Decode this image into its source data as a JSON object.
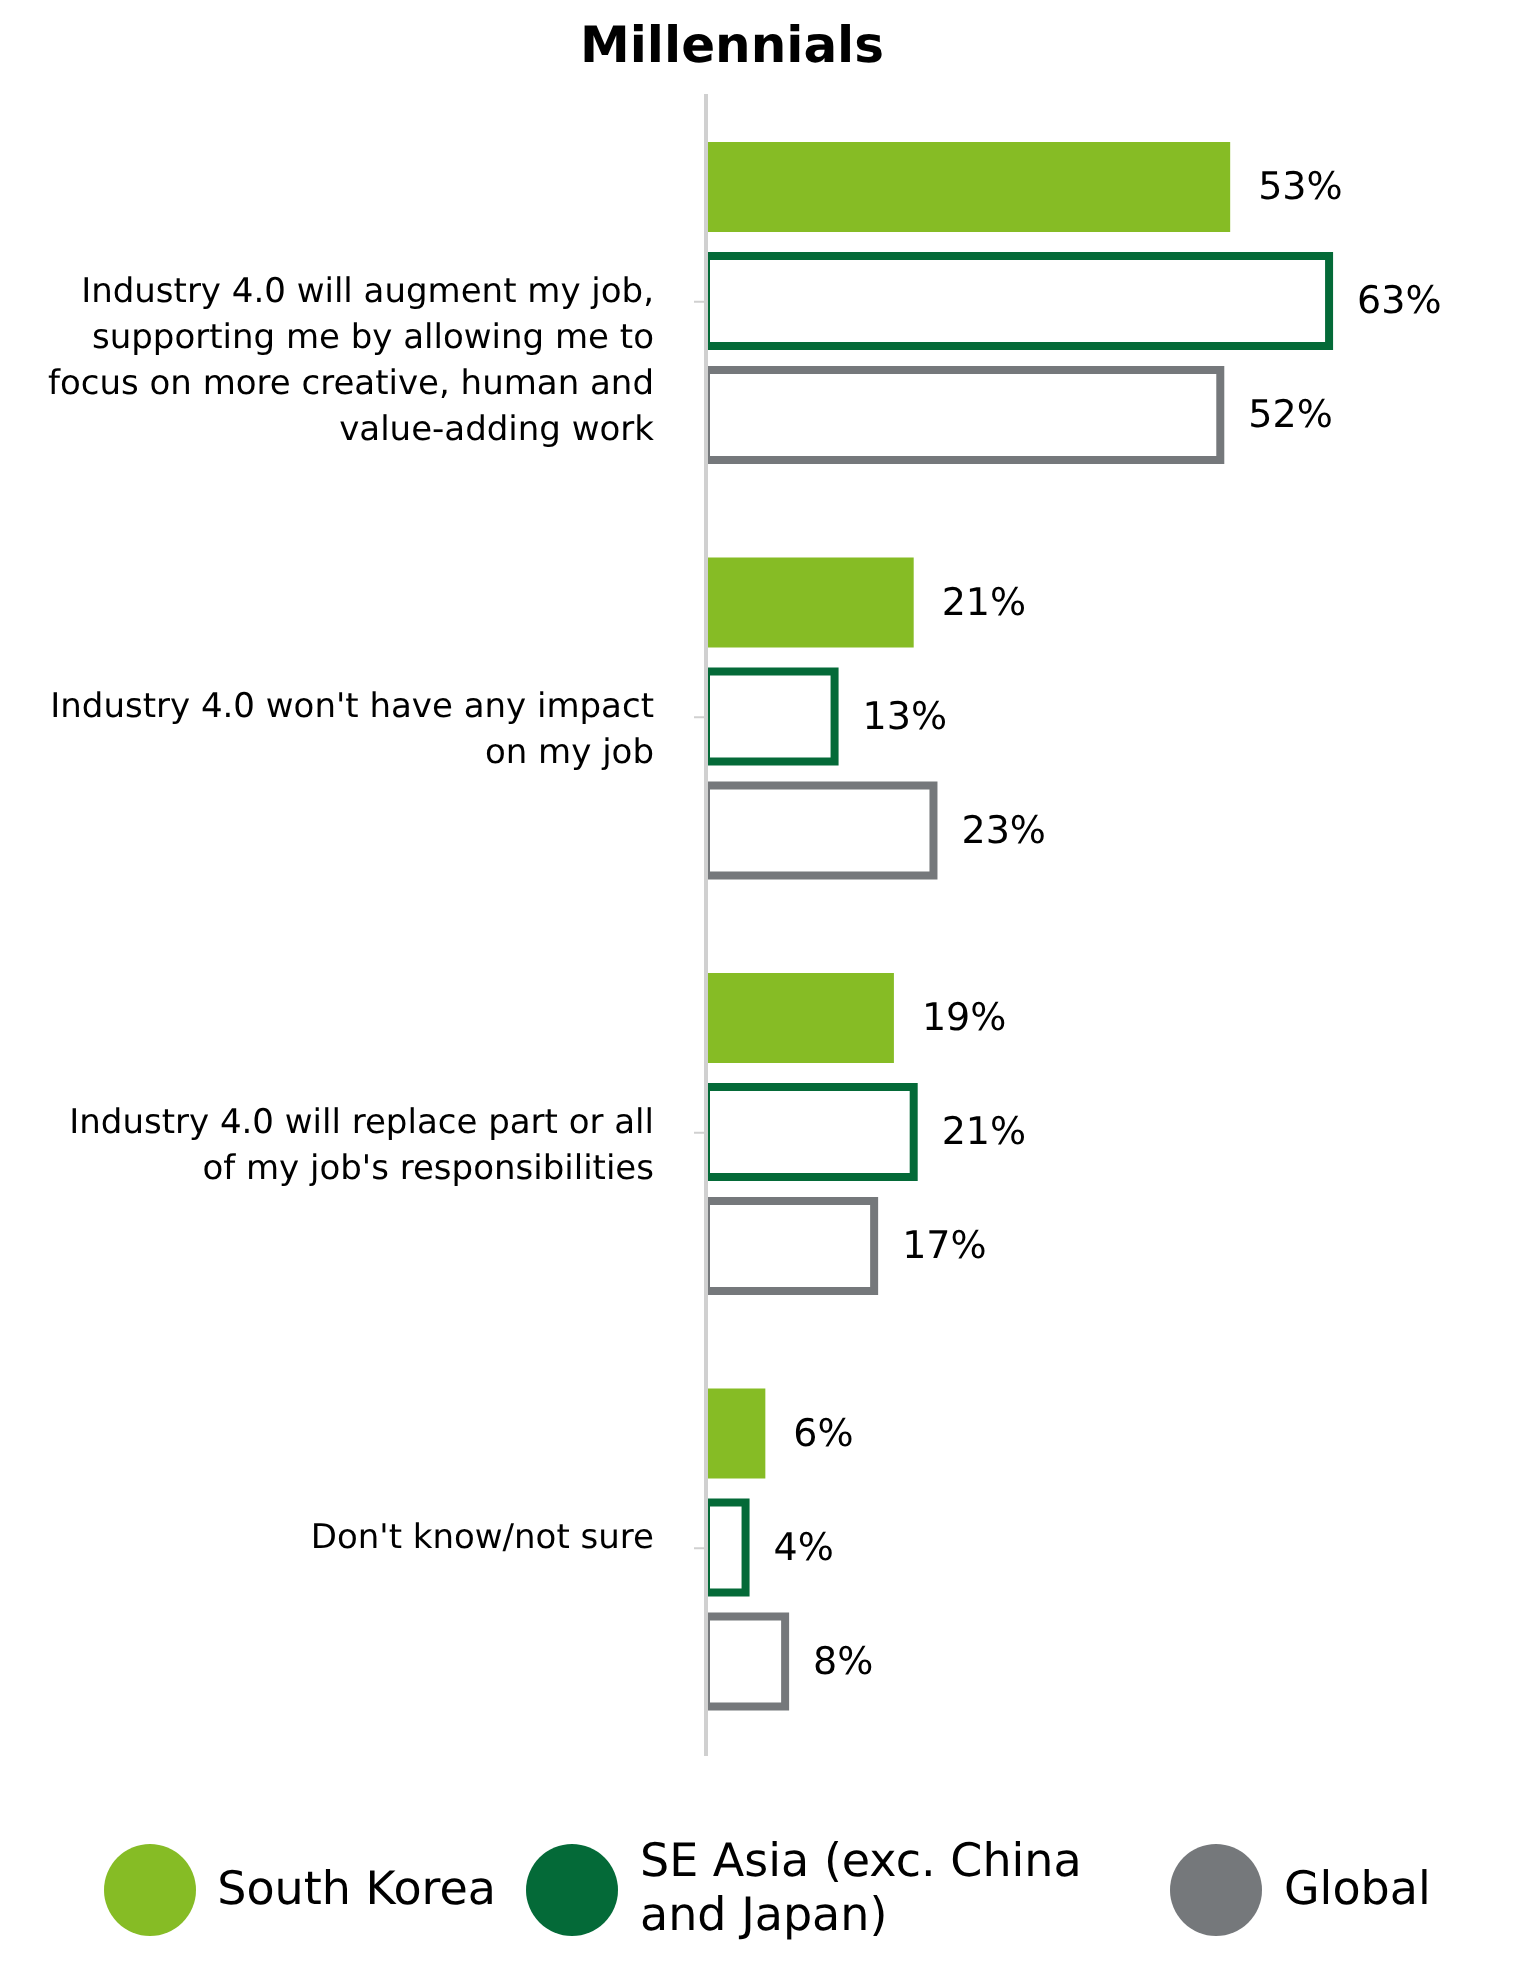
{
  "chart_data": {
    "type": "bar",
    "orientation": "horizontal",
    "title": "Millennials",
    "categories": [
      "Industry 4.0 will augment my job, supporting me by allowing me to focus on more creative, human and value-adding work",
      "Industry 4.0 won't have any impact on my job",
      "Industry 4.0 will replace part or all of my job's responsibilities",
      "Don't know/not sure"
    ],
    "series": [
      {
        "name": "South Korea",
        "color": "#86bc25",
        "values": [
          53,
          21,
          19,
          6
        ],
        "value_labels": [
          "53%",
          "21%",
          "19%",
          "6%"
        ]
      },
      {
        "name": "SE Asia (exc. China and Japan)",
        "color": "#046a38",
        "values": [
          63,
          13,
          21,
          4
        ],
        "value_labels": [
          "63%",
          "13%",
          "21%",
          "4%"
        ]
      },
      {
        "name": "Global",
        "color": "#75787b",
        "values": [
          52,
          23,
          17,
          8
        ],
        "value_labels": [
          "52%",
          "23%",
          "17%",
          "8%"
        ]
      }
    ],
    "tick_labels": "y",
    "legend": "bottom"
  }
}
